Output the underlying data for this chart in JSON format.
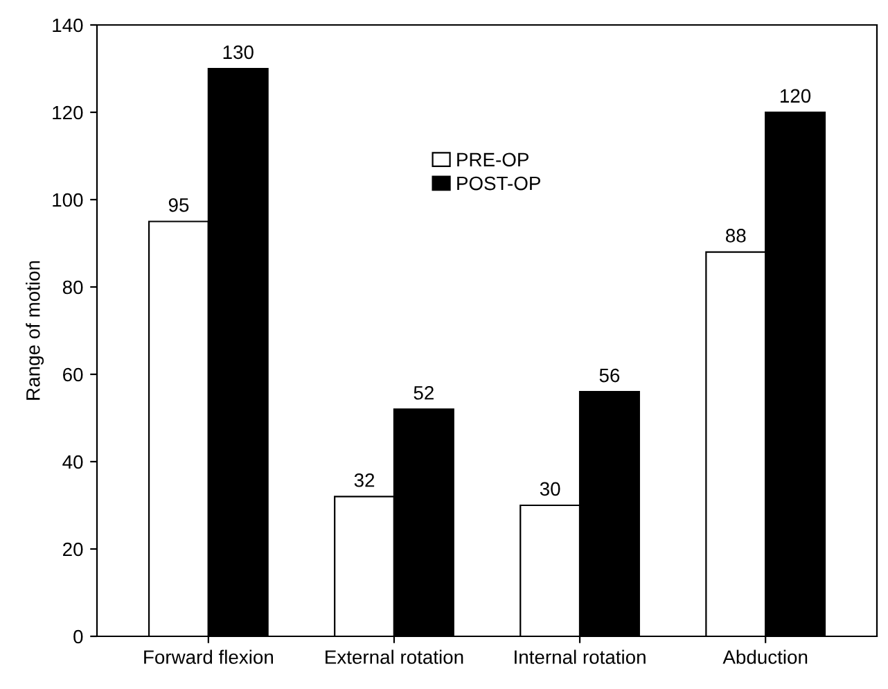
{
  "chart_data": {
    "type": "bar",
    "ylabel": "Range of motion",
    "categories": [
      "Forward flexion",
      "External rotation",
      "Internal rotation",
      "Abduction"
    ],
    "series": [
      {
        "name": "PRE-OP",
        "color": "#ffffff",
        "values": [
          95,
          32,
          30,
          88
        ]
      },
      {
        "name": "POST-OP",
        "color": "#000000",
        "values": [
          130,
          52,
          56,
          120
        ]
      }
    ],
    "ylim": [
      0,
      140
    ],
    "yticks": [
      0,
      20,
      40,
      60,
      80,
      100,
      120,
      140
    ],
    "grid": false,
    "legend": "top",
    "data_labels": true
  }
}
